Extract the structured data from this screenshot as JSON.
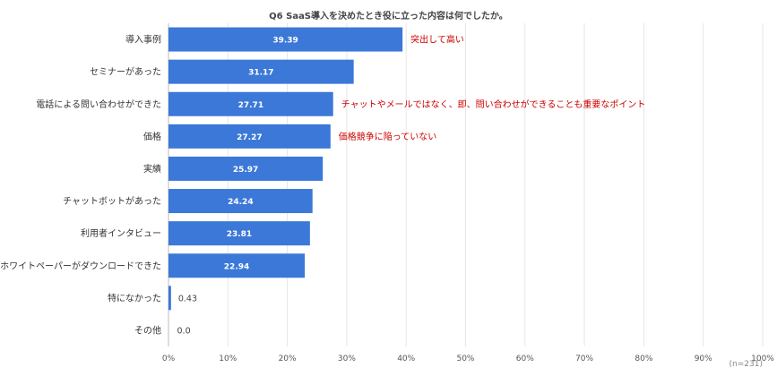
{
  "chart_data": {
    "type": "bar",
    "orientation": "horizontal",
    "title": "Q6 SaaS導入を決めたとき役に立った内容は何でしたか。",
    "categories": [
      "導入事例",
      "セミナーがあった",
      "電話による問い合わせができた",
      "価格",
      "実績",
      "チャットボットがあった",
      "利用者インタビュー",
      "ホワイトペーパーがダウンロードできた",
      "特になかった",
      "その他"
    ],
    "values": [
      39.39,
      31.17,
      27.71,
      27.27,
      25.97,
      24.24,
      23.81,
      22.94,
      0.43,
      0.0
    ],
    "value_labels": [
      "39.39",
      "31.17",
      "27.71",
      "27.27",
      "25.97",
      "24.24",
      "23.81",
      "22.94",
      "0.43",
      "0.0"
    ],
    "xlim": [
      0,
      100
    ],
    "x_ticks": [
      "0%",
      "10%",
      "20%",
      "30%",
      "40%",
      "50%",
      "60%",
      "70%",
      "80%",
      "90%",
      "100%"
    ],
    "grid": true,
    "bar_color": "#3b78d8",
    "annotation_color": "#cc0000",
    "annotations": [
      {
        "category": "導入事例",
        "text": "突出して高い"
      },
      {
        "category": "電話による問い合わせができた",
        "text": "チャットやメールではなく、即、問い合わせができることも重要なポイント"
      },
      {
        "category": "価格",
        "text": "価格競争に陥っていない"
      }
    ],
    "note": "(n=231)"
  }
}
